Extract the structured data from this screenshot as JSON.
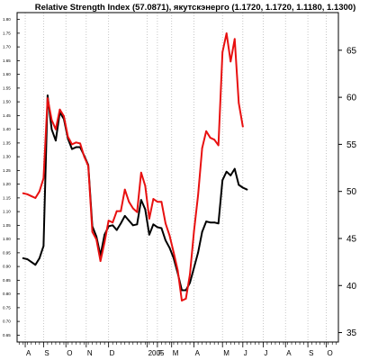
{
  "chart_data": {
    "type": "line",
    "title": "Relative Strength Index (57.0871), якутскэнерго (1.1720, 1.1720, 1.1180, 1.1300)",
    "left_axis": {
      "ticks": [
        "0.65",
        "0.70",
        "0.75",
        "0.80",
        "0.85",
        "0.90",
        "0.95",
        "1.00",
        "1.05",
        "1.10",
        "1.15",
        "1.20",
        "1.25",
        "1.30",
        "1.35",
        "1.40",
        "1.45",
        "1.50",
        "1.55",
        "1.60",
        "1.65",
        "1.70",
        "1.75",
        "1.80"
      ],
      "ylim": [
        0.625,
        1.825
      ]
    },
    "right_axis": {
      "ticks": [
        "35",
        "40",
        "45",
        "50",
        "55",
        "60",
        "65"
      ],
      "ylim": [
        34,
        69
      ]
    },
    "x_axis": {
      "labels": [
        "A",
        "S",
        "O",
        "N",
        "D",
        "2005",
        "F",
        "M",
        "A",
        "M",
        "J",
        "J",
        "A",
        "S",
        "O"
      ],
      "label_index": [
        0.5,
        5,
        10.5,
        15.5,
        21,
        30.5,
        33,
        36.5,
        42,
        49,
        54,
        59,
        64.5,
        70,
        74.5
      ],
      "xlim": [
        -1.5,
        77.5
      ],
      "minor_ticks": 79
    },
    "grid": true,
    "series": [
      {
        "color": "#000000",
        "axis": "right",
        "values": [
          42.9,
          42.8,
          42.5,
          42.2,
          42.9,
          44.2,
          60.2,
          56.6,
          55.4,
          58.4,
          57.7,
          55.6,
          54.5,
          54.7,
          54.7,
          53.8,
          52.8,
          46.3,
          45.2,
          43.2,
          45.4,
          46.3,
          46.4,
          45.9,
          46.6,
          47.4,
          46.9,
          46.4,
          46.5,
          49.1,
          48.1,
          45.4,
          46.5,
          46.2,
          46.1,
          44.8,
          44.0,
          42.9,
          41.3,
          39.5,
          39.5,
          40.3,
          41.9,
          43.5,
          45.7,
          46.8,
          46.7,
          46.7,
          46.6,
          51.2,
          52.1,
          51.7,
          52.4,
          50.7,
          50.4,
          50.2
        ]
      },
      {
        "color": "#e81010",
        "axis": "right",
        "values": [
          49.8,
          49.7,
          49.5,
          49.3,
          50.0,
          51.4,
          59.9,
          57.6,
          56.6,
          58.7,
          58.0,
          55.8,
          55.0,
          55.2,
          55.1,
          53.7,
          52.7,
          45.7,
          44.9,
          42.6,
          44.6,
          46.9,
          46.7,
          47.9,
          47.9,
          50.2,
          48.9,
          48.2,
          47.8,
          52.0,
          50.6,
          47.1,
          49.2,
          48.9,
          48.9,
          46.6,
          45.3,
          43.5,
          41.6,
          38.4,
          38.6,
          41.2,
          45.8,
          49.6,
          54.6,
          56.4,
          55.7,
          55.5,
          54.9,
          64.8,
          66.8,
          63.8,
          66.2,
          59.4,
          56.9
        ]
      }
    ]
  }
}
